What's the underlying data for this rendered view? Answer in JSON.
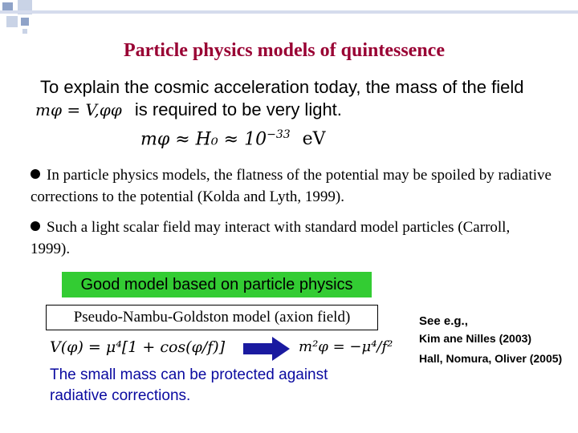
{
  "slide": {
    "title": "Particle physics models of quintessence",
    "intro_line1": "To explain the cosmic acceleration today, the mass of the field",
    "intro_eq": "mφ = V,φφ",
    "intro_line2": "is required to be very light.",
    "mass_eq_lhs": "mφ ≈ H₀ ≈ 10",
    "mass_eq_exp": "−33",
    "mass_eq_unit": "eV",
    "bullet1": "In particle physics models, the flatness of the potential may be spoiled by radiative corrections to the potential (Kolda and Lyth, 1999).",
    "bullet2": "Such a light scalar field may interact with standard model particles (Carroll, 1999).",
    "good_model": "Good model based on particle physics",
    "png_model": "Pseudo-Nambu-Goldston model (axion field)",
    "potential_eq": "V(φ) = μ⁴[1 + cos(φ/f)]",
    "mass2_eq": "m²φ = −μ⁴/f²",
    "protected_text": "The small mass can be protected against radiative corrections.",
    "see": "See e.g.,",
    "ref1": "Kim ane Nilles (2003)",
    "ref2": "Hall, Nomura, Oliver (2005)",
    "arrow_color": "#1a1aa0",
    "title_color": "#990033",
    "box_color": "#33cc33"
  }
}
